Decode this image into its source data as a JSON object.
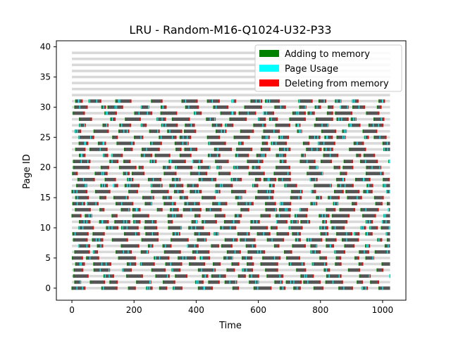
{
  "chart_data": {
    "type": "heatmap",
    "title": "LRU - Random-M16-Q1024-U32-P33",
    "xlabel": "Time",
    "ylabel": "Page ID",
    "xlim": [
      -50,
      1075
    ],
    "ylim": [
      -2,
      41
    ],
    "xticks": [
      0,
      200,
      400,
      600,
      800,
      1000
    ],
    "yticks": [
      0,
      5,
      10,
      15,
      20,
      25,
      30,
      35,
      40
    ],
    "grid": false,
    "legend_position": "top-right",
    "legend": [
      {
        "label": "Adding to memory",
        "color": "#008000"
      },
      {
        "label": "Page Usage",
        "color": "#00ffff"
      },
      {
        "label": "Deleting from memory",
        "color": "#ff0000"
      }
    ],
    "timeline_length": 1024,
    "page_rows": 40,
    "active_page_range": [
      0,
      32
    ],
    "memory_frames": 16,
    "colors": {
      "background_row": "#d9d9d9",
      "resident_bar": "#555555",
      "add_marker": "#008000",
      "usage_marker": "#00ffff",
      "delete_marker": "#ff0000"
    }
  }
}
